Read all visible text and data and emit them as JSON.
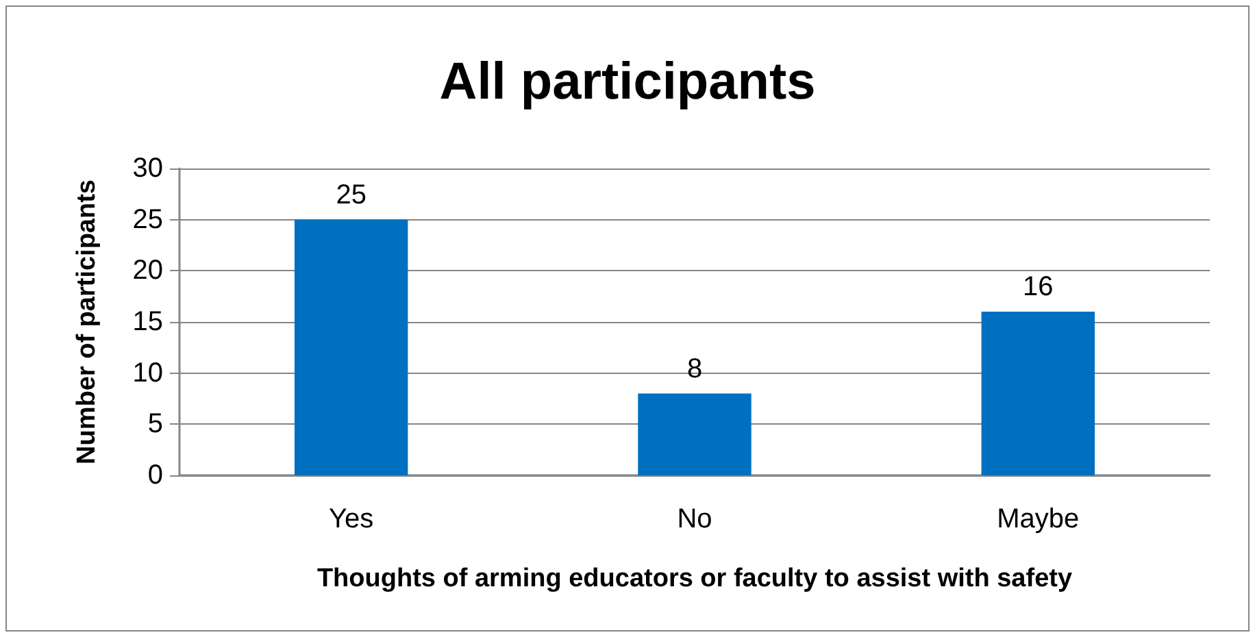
{
  "chart_data": {
    "type": "bar",
    "title": "All participants",
    "categories": [
      "Yes",
      "No",
      "Maybe"
    ],
    "values": [
      25,
      8,
      16
    ],
    "color": "#0070c0",
    "xlabel": "Thoughts of arming educators or faculty to assist with safety",
    "ylabel": "Number of participants",
    "ylim": [
      0,
      30
    ],
    "yticks": [
      0,
      5,
      10,
      15,
      20,
      25,
      30
    ],
    "grid": "y",
    "data_labels": true
  }
}
